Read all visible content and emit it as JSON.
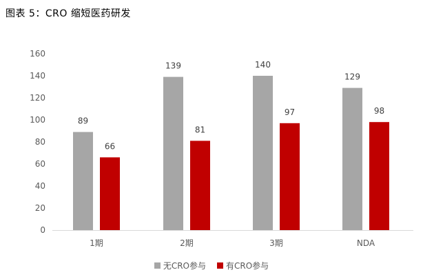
{
  "figure_title": "图表 5：CRO 缩短医药研发",
  "chart_data": {
    "type": "bar",
    "categories": [
      "1期",
      "2期",
      "3期",
      "NDA"
    ],
    "series": [
      {
        "name": "无CRO参与",
        "values": [
          89,
          139,
          140,
          129
        ],
        "color": "#a6a6a6"
      },
      {
        "name": "有CRO参与",
        "values": [
          66,
          81,
          97,
          98
        ],
        "color": "#c00000"
      }
    ],
    "ylim": [
      0,
      160
    ],
    "yticks": [
      0,
      20,
      40,
      60,
      80,
      100,
      120,
      140,
      160
    ],
    "grid": false,
    "legend_position": "bottom",
    "data_labels": true
  }
}
